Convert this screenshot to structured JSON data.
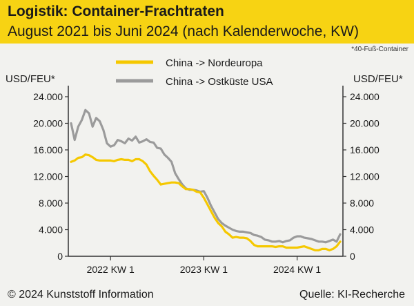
{
  "header": {
    "title": "Logistik: Container-Frachtraten",
    "subtitle": "August 2021 bis Juni 2024 (nach Kalenderwoche, KW)"
  },
  "footnote": "*40-Fuß-Container",
  "footer": {
    "copyright": "© 2024 Kunststoff Information",
    "source": "Quelle: KI-Recherche"
  },
  "colors": {
    "banner": "#f7d313",
    "nordeuropa": "#f5c800",
    "usa": "#9b9b9b",
    "axis": "#333333"
  },
  "chart_data": {
    "type": "line",
    "title": "Logistik: Container-Frachtraten",
    "ylabel_left": "USD/FEU*",
    "ylabel_right": "USD/FEU*",
    "ylim": [
      0,
      24000
    ],
    "yticks": [
      0,
      4000,
      8000,
      12000,
      16000,
      20000,
      24000
    ],
    "ytick_labels": [
      "0",
      "4.000",
      "8.000",
      "12.000",
      "16.000",
      "20.000",
      "24.000"
    ],
    "xlim": [
      0,
      150
    ],
    "xticks": [
      {
        "x": 22,
        "label": "2022 KW 1"
      },
      {
        "x": 74,
        "label": "2023 KW 1"
      },
      {
        "x": 126,
        "label": "2024 KW 1"
      }
    ],
    "legend_position": "top-center",
    "series": [
      {
        "name": "China -> Nordeuropa",
        "x": [
          0,
          2,
          4,
          6,
          8,
          10,
          12,
          14,
          16,
          18,
          20,
          22,
          24,
          26,
          28,
          30,
          32,
          34,
          36,
          38,
          40,
          42,
          44,
          46,
          48,
          50,
          52,
          54,
          56,
          58,
          60,
          62,
          64,
          66,
          68,
          70,
          72,
          74,
          76,
          78,
          80,
          82,
          84,
          86,
          88,
          90,
          92,
          94,
          96,
          98,
          100,
          102,
          104,
          106,
          108,
          110,
          112,
          114,
          116,
          118,
          120,
          122,
          124,
          126,
          128,
          130,
          132,
          134,
          136,
          138,
          140,
          142,
          144,
          146,
          148,
          150
        ],
        "values": [
          14200,
          14400,
          14800,
          14900,
          15300,
          15200,
          14900,
          14500,
          14400,
          14400,
          14400,
          14400,
          14300,
          14500,
          14600,
          14500,
          14500,
          14300,
          14600,
          14600,
          14300,
          13800,
          12800,
          12100,
          11500,
          10800,
          10900,
          11000,
          11100,
          11100,
          11000,
          10500,
          10100,
          10100,
          10000,
          9700,
          9600,
          8800,
          7800,
          6800,
          5800,
          5000,
          4500,
          3700,
          3300,
          2800,
          2900,
          2800,
          2800,
          2700,
          2300,
          1700,
          1500,
          1500,
          1500,
          1500,
          1500,
          1400,
          1500,
          1500,
          1300,
          1300,
          1300,
          1300,
          1400,
          1500,
          1300,
          1100,
          900,
          900,
          1100,
          1100,
          900,
          1100,
          1500,
          2200
        ]
      },
      {
        "name": "China -> Ostküste USA",
        "x": [
          0,
          2,
          4,
          6,
          8,
          10,
          12,
          14,
          16,
          18,
          20,
          22,
          24,
          26,
          28,
          30,
          32,
          34,
          36,
          38,
          40,
          42,
          44,
          46,
          48,
          50,
          52,
          54,
          56,
          58,
          60,
          62,
          64,
          66,
          68,
          70,
          72,
          74,
          76,
          78,
          80,
          82,
          84,
          86,
          88,
          90,
          92,
          94,
          96,
          98,
          100,
          102,
          104,
          106,
          108,
          110,
          112,
          114,
          116,
          118,
          120,
          122,
          124,
          126,
          128,
          130,
          132,
          134,
          136,
          138,
          140,
          142,
          144,
          146,
          148,
          150
        ],
        "values": [
          20000,
          17500,
          19500,
          20500,
          22000,
          21500,
          19500,
          20800,
          20300,
          19000,
          17000,
          16500,
          16700,
          17500,
          17300,
          17000,
          17700,
          17400,
          18000,
          17100,
          17300,
          17600,
          17200,
          17100,
          16300,
          16200,
          15300,
          14800,
          14200,
          12500,
          11600,
          10800,
          10200,
          10000,
          10000,
          9900,
          9700,
          9800,
          8800,
          7600,
          6600,
          5600,
          5000,
          4600,
          4300,
          4000,
          3800,
          3700,
          3700,
          3600,
          3500,
          3200,
          3100,
          2900,
          2500,
          2400,
          2200,
          2200,
          2300,
          2100,
          2300,
          2400,
          2800,
          3000,
          3000,
          2800,
          2700,
          2600,
          2400,
          2200,
          2200,
          2100,
          2300,
          2500,
          2200,
          3300
        ]
      }
    ]
  }
}
